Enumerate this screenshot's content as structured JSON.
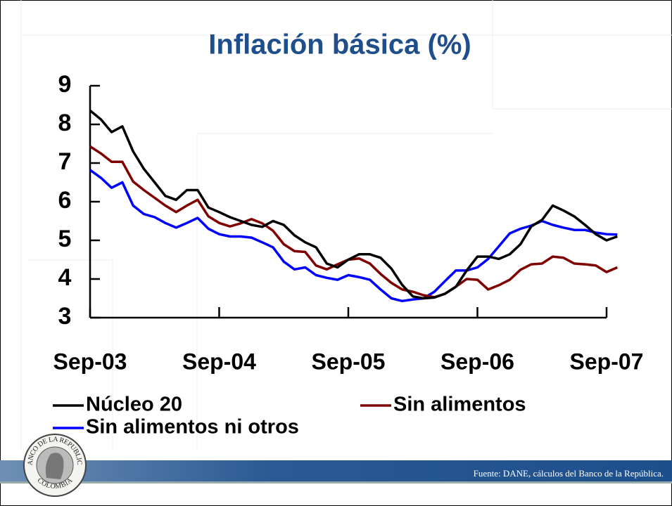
{
  "chart_data": {
    "type": "line",
    "title": "Inflación básica (%)",
    "categories": [
      "Sep-03",
      null,
      null,
      null,
      null,
      null,
      null,
      null,
      null,
      null,
      null,
      null,
      "Sep-04",
      null,
      null,
      null,
      null,
      null,
      null,
      null,
      null,
      null,
      null,
      null,
      "Sep-05",
      null,
      null,
      null,
      null,
      null,
      null,
      null,
      null,
      null,
      null,
      null,
      "Sep-06",
      null,
      null,
      null,
      null,
      null,
      null,
      null,
      null,
      null,
      null,
      null,
      "Sep-07",
      null
    ],
    "ylim": [
      3,
      9
    ],
    "yticks": [
      3,
      4,
      5,
      6,
      7,
      8,
      9
    ],
    "series": [
      {
        "name": "Núcleo 20",
        "color": "#000000",
        "values": [
          8.36,
          8.13,
          7.8,
          7.95,
          7.3,
          6.85,
          6.5,
          6.15,
          6.05,
          6.3,
          6.3,
          5.85,
          5.73,
          5.6,
          5.5,
          5.4,
          5.35,
          5.5,
          5.4,
          5.13,
          4.95,
          4.82,
          4.4,
          4.3,
          4.5,
          4.64,
          4.64,
          4.55,
          4.27,
          3.85,
          3.55,
          3.5,
          3.52,
          3.62,
          3.8,
          4.22,
          4.58,
          4.58,
          4.52,
          4.64,
          4.9,
          5.36,
          5.53,
          5.9,
          5.77,
          5.62,
          5.4,
          5.16,
          5.0,
          5.1
        ]
      },
      {
        "name": "Sin alimentos",
        "color": "#800000",
        "values": [
          7.43,
          7.25,
          7.03,
          7.03,
          6.52,
          6.3,
          6.1,
          5.9,
          5.73,
          5.9,
          6.05,
          5.62,
          5.45,
          5.36,
          5.44,
          5.55,
          5.44,
          5.25,
          4.9,
          4.72,
          4.7,
          4.35,
          4.25,
          4.38,
          4.5,
          4.53,
          4.4,
          4.13,
          3.9,
          3.73,
          3.67,
          3.58,
          3.53,
          3.62,
          3.8,
          4.0,
          3.98,
          3.73,
          3.84,
          3.98,
          4.24,
          4.38,
          4.4,
          4.58,
          4.55,
          4.4,
          4.38,
          4.35,
          4.18,
          4.3
        ]
      },
      {
        "name": "Sin alimentos ni otros",
        "color": "#0000ff",
        "values": [
          6.82,
          6.62,
          6.36,
          6.5,
          5.9,
          5.68,
          5.6,
          5.45,
          5.33,
          5.45,
          5.58,
          5.3,
          5.16,
          5.1,
          5.1,
          5.07,
          4.95,
          4.82,
          4.45,
          4.25,
          4.3,
          4.1,
          4.03,
          3.98,
          4.1,
          4.05,
          3.98,
          3.73,
          3.5,
          3.43,
          3.47,
          3.5,
          3.67,
          3.95,
          4.22,
          4.22,
          4.3,
          4.52,
          4.85,
          5.18,
          5.3,
          5.38,
          5.5,
          5.4,
          5.33,
          5.27,
          5.27,
          5.2,
          5.16,
          5.15
        ]
      }
    ]
  },
  "source": "Fuente: DANE, cálculos del Banco de la República.",
  "seal": {
    "top": "BANCO DE LA REPUBLICA",
    "bottom": "COLOMBIA"
  }
}
